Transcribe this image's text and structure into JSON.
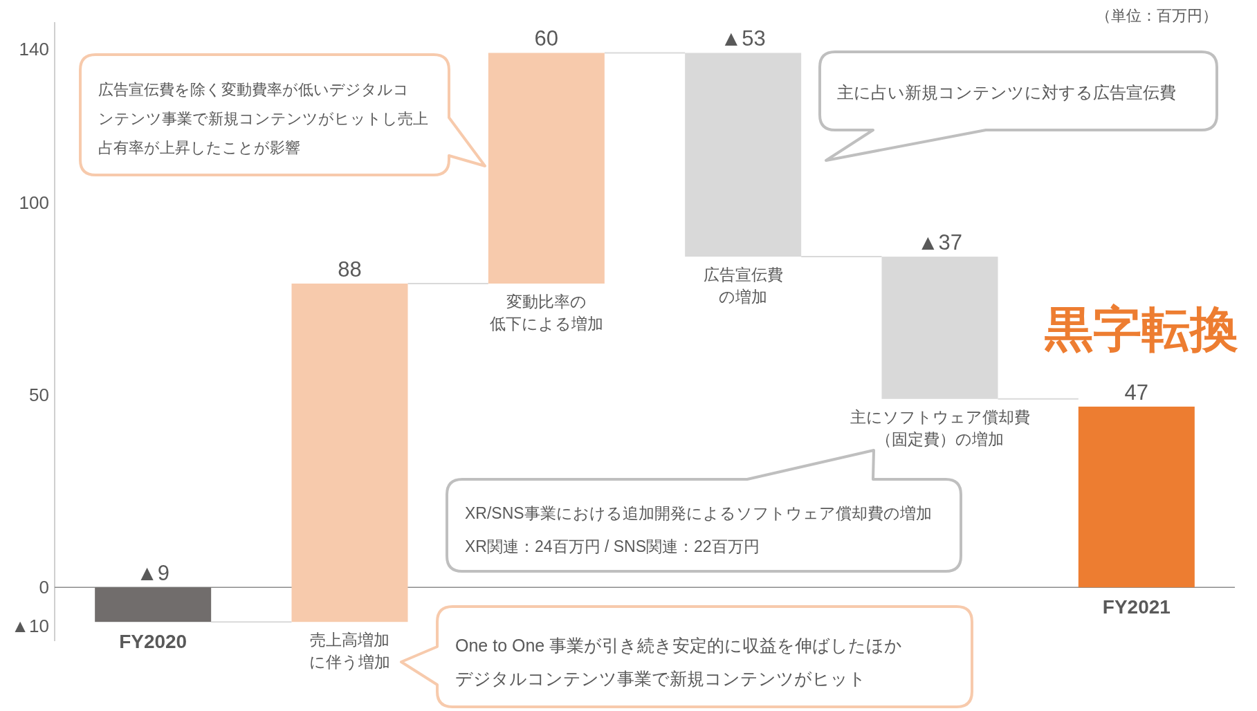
{
  "chart_data": {
    "type": "bar",
    "categories": [
      "FY2020",
      "売上高増加に伴う増加",
      "変動比率の低下による増加",
      "広告宣伝費の増加",
      "主にソフトウェア償却費（固定費）の増加",
      "FY2021"
    ],
    "values": [
      -9,
      88,
      60,
      -53,
      -37,
      47
    ],
    "base": [
      0,
      -9,
      79,
      139,
      86,
      0
    ],
    "colors": [
      "#716d6c",
      "#f7caac",
      "#f7caac",
      "#d9d9d9",
      "#d9d9d9",
      "#ed7d31"
    ],
    "value_labels": [
      "▲9",
      "88",
      "60",
      "▲53",
      "▲37",
      "47"
    ],
    "ylim": [
      -14,
      147
    ],
    "yticks": [
      {
        "value": -10,
        "label": "▲10"
      },
      0,
      50,
      100,
      140
    ],
    "annotations": [
      "（単位：百万円）",
      "広告宣伝費を除く変動費率が低いデジタルコンテンツ事業で新規コンテンツがヒットし売上占有率が上昇したことが影響",
      "主に占い新規コンテンツに対する広告宣伝費",
      "XR/SNS事業における追加開発によるソフトウェア償却費の増加XR関連：24百万円 / SNS関連：22百万円",
      "One to One 事業が引き続き安定的に収益を伸ばしたほかデジタルコンテンツ事業で新規コンテンツがヒット",
      "黒字転換"
    ]
  }
}
